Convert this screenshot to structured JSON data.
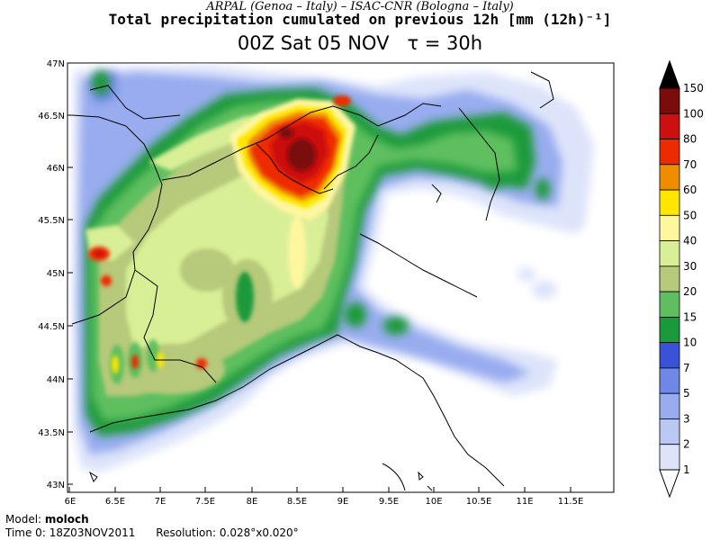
{
  "header": {
    "subtitle": "ARPAL (Genoa – Italy)   –   ISAC-CNR (Bologna – Italy)",
    "title": "Total precipitation cumulated on previous 12h [mm (12h)⁻¹]",
    "time_label": "00Z Sat 05 NOV",
    "tau_label": "τ = 30h"
  },
  "axes": {
    "lat_ticks": [
      "47N",
      "46.5N",
      "46N",
      "45.5N",
      "45N",
      "44.5N",
      "44N",
      "43.5N",
      "43N"
    ],
    "lon_ticks": [
      "6E",
      "6.5E",
      "7E",
      "7.5E",
      "8E",
      "8.5E",
      "9E",
      "9.5E",
      "10E",
      "10.5E",
      "11E",
      "11.5E"
    ],
    "lat_range": [
      43,
      47
    ],
    "lon_range": [
      6,
      12.0
    ]
  },
  "legend": {
    "levels": [
      "150",
      "100",
      "80",
      "70",
      "60",
      "50",
      "40",
      "30",
      "20",
      "15",
      "10",
      "7",
      "5",
      "3",
      "2",
      "1"
    ],
    "colors": [
      "#000000",
      "#7a0c0c",
      "#cc1010",
      "#ee2a00",
      "#f08c00",
      "#ffe600",
      "#fff7a0",
      "#d8ef96",
      "#b7c97a",
      "#5fbf5f",
      "#1a9a3a",
      "#3a52d8",
      "#6f88e8",
      "#98acef",
      "#bcc8f4",
      "#dde4fa"
    ]
  },
  "footer": {
    "model_label": "Model:",
    "model_name": "moloch",
    "time0_label": "Time 0:",
    "time0_value": "18Z03NOV2011",
    "resolution_label": "Resolution:",
    "resolution_value": "0.028°x0.020°"
  }
}
